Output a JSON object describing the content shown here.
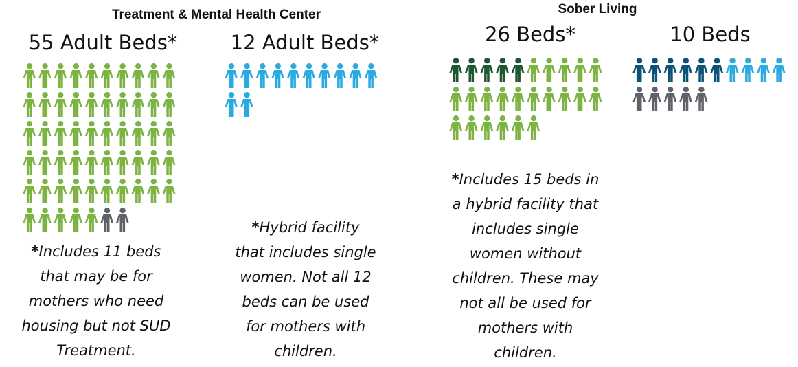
{
  "sections": [
    {
      "title": "Treatment & Mental Health Center"
    },
    {
      "title": "Sober Living"
    }
  ],
  "groups": [
    {
      "label": "55 Adult Beds*",
      "segments": [
        {
          "count": 55,
          "color": "#7cb342"
        },
        {
          "count": 2,
          "color": "#5f6368"
        }
      ],
      "note": {
        "marker": "*",
        "lines": [
          "Includes 11 beds",
          "that may be for",
          "mothers who need",
          "housing but not SUD",
          "Treatment."
        ]
      }
    },
    {
      "label": "12 Adult Beds*",
      "segments": [
        {
          "count": 12,
          "color": "#29abe2"
        }
      ],
      "note": {
        "marker": "*",
        "lines": [
          "Hybrid facility",
          "that includes single",
          "women. Not all 12",
          "beds can be used",
          "for mothers with",
          "children."
        ]
      }
    },
    {
      "label": "26 Beds*",
      "segments": [
        {
          "count": 5,
          "color": "#1e5631"
        },
        {
          "count": 21,
          "color": "#7cb342"
        }
      ],
      "note": {
        "marker": "*",
        "lines": [
          "Includes 15 beds in",
          "a hybrid facility that",
          "includes single",
          "women without",
          "children. These may",
          "not all be used for",
          "mothers with",
          "children."
        ]
      }
    },
    {
      "label": "10 Beds",
      "segments": [
        {
          "count": 6,
          "color": "#0d5275"
        },
        {
          "count": 4,
          "color": "#29abe2"
        },
        {
          "count": 5,
          "color": "#5f6368"
        }
      ]
    }
  ]
}
